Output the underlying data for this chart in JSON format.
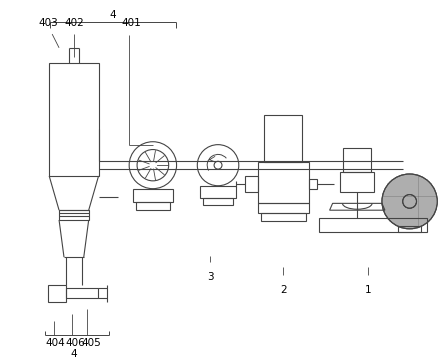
{
  "bg_color": "#ffffff",
  "line_color": "#444444",
  "lw": 0.8,
  "fig_w": 4.43,
  "fig_h": 3.64,
  "labels": {
    "4_top": "4",
    "403": "403",
    "402": "402",
    "401": "401",
    "3": "3",
    "2": "2",
    "1": "1",
    "404": "404",
    "406": "406",
    "405": "405",
    "4_bot": "4"
  }
}
